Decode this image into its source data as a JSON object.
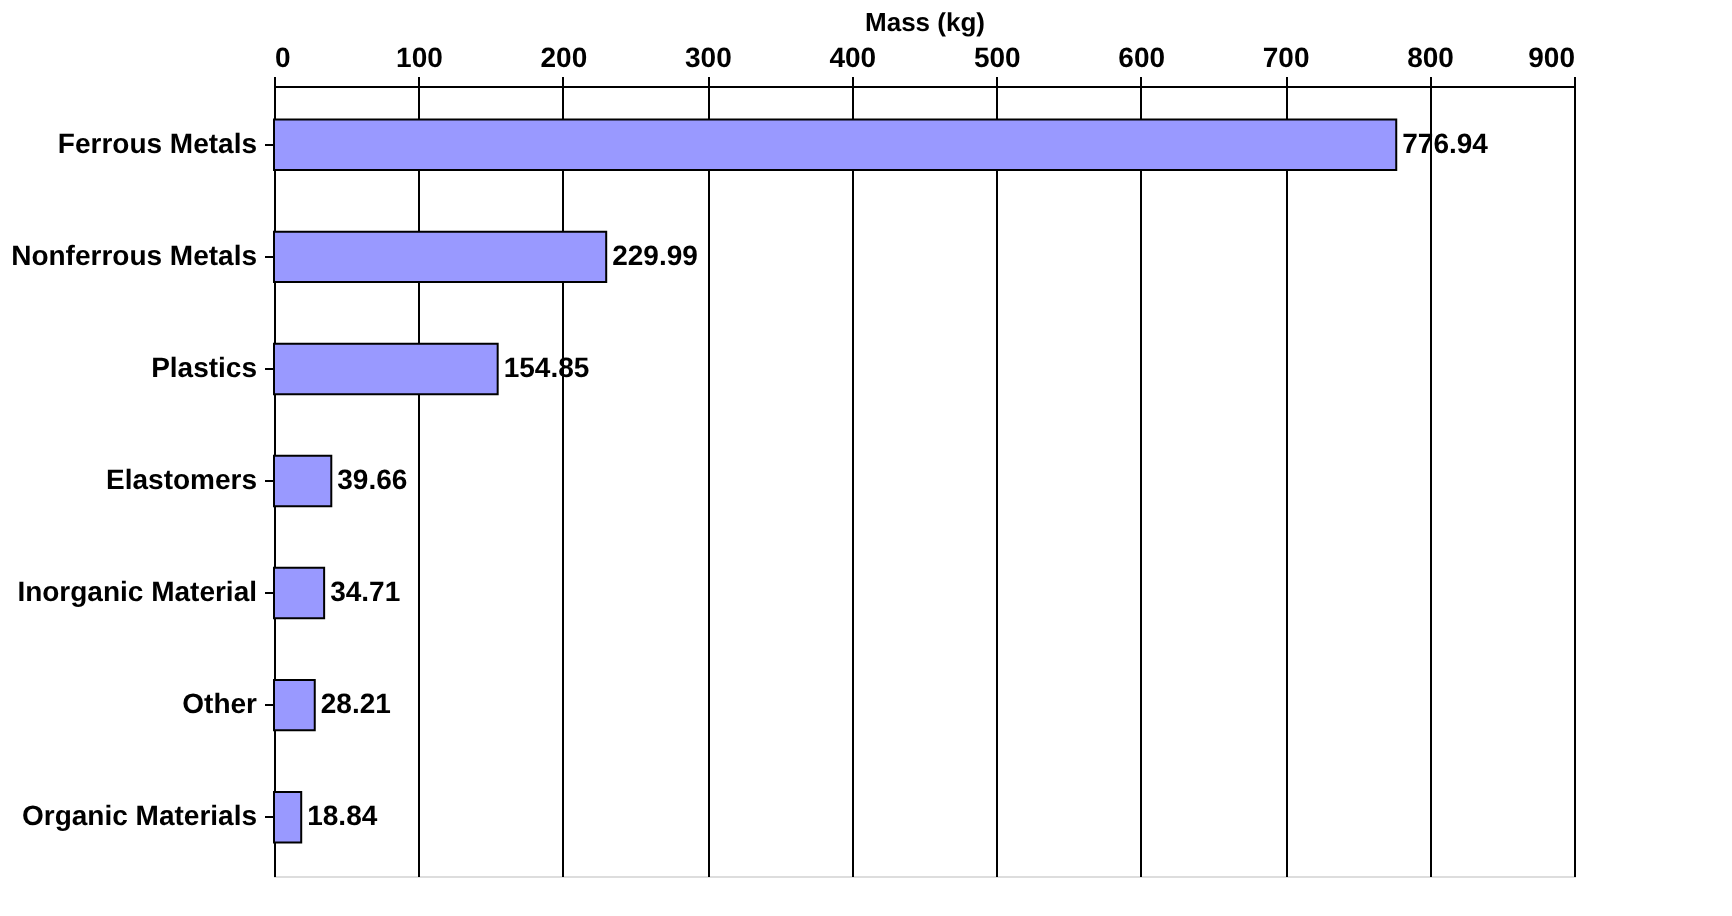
{
  "chart_data": {
    "type": "bar",
    "orientation": "horizontal",
    "xlabel": "Mass (kg)",
    "categories": [
      "Ferrous Metals",
      "Nonferrous Metals",
      "Plastics",
      "Elastomers",
      "Inorganic Material",
      "Other",
      "Organic Materials"
    ],
    "values": [
      776.94,
      229.99,
      154.85,
      39.66,
      34.71,
      28.21,
      18.84
    ],
    "color": "#9999ff",
    "xlim": [
      0,
      900
    ],
    "xticks": [
      0,
      100,
      200,
      300,
      400,
      500,
      600,
      700,
      800,
      900
    ],
    "grid": "x",
    "data_labels": true
  }
}
